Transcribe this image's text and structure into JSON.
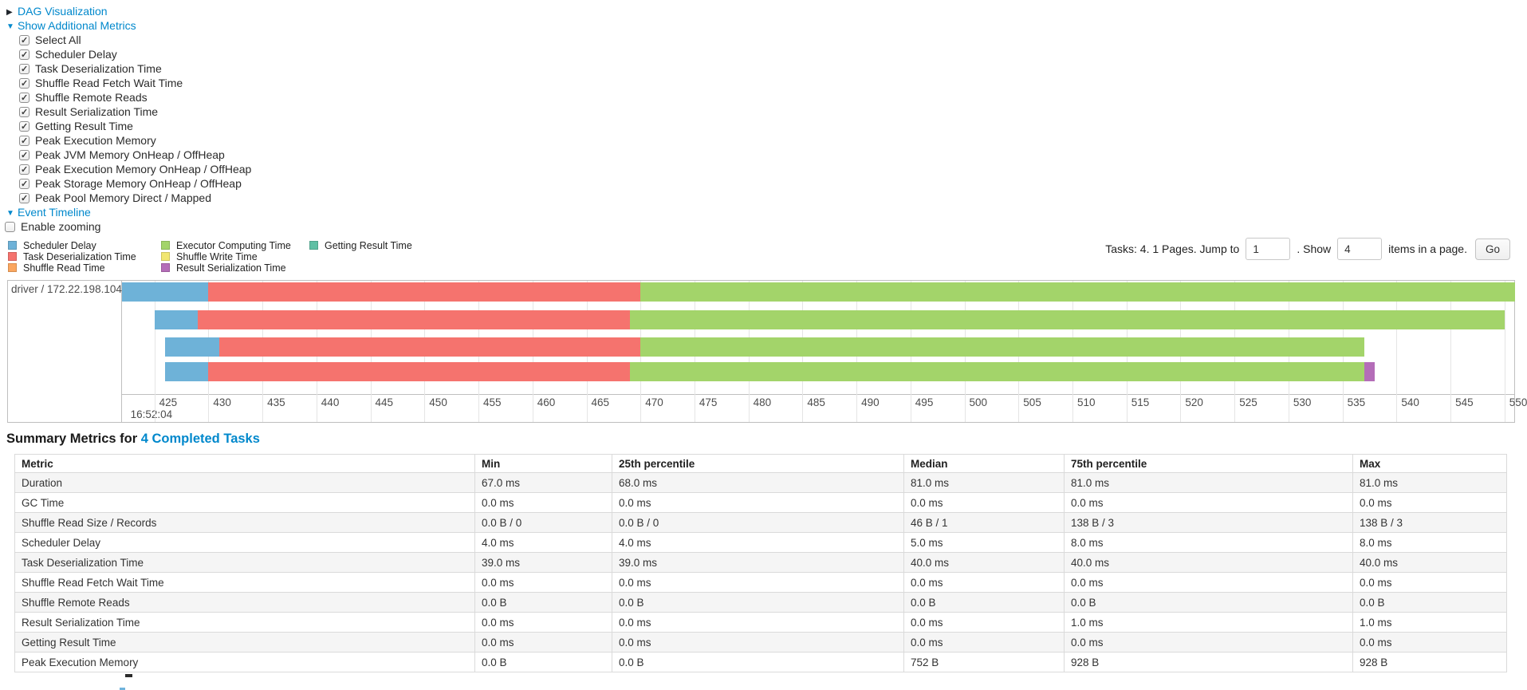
{
  "controls": {
    "dag": {
      "label": "DAG Visualization",
      "state": "collapsed"
    },
    "metrics_toggle": {
      "label": "Show Additional Metrics",
      "state": "expanded"
    },
    "metric_checkboxes": [
      {
        "label": "Select All",
        "checked": true
      },
      {
        "label": "Scheduler Delay",
        "checked": true
      },
      {
        "label": "Task Deserialization Time",
        "checked": true
      },
      {
        "label": "Shuffle Read Fetch Wait Time",
        "checked": true
      },
      {
        "label": "Shuffle Remote Reads",
        "checked": true
      },
      {
        "label": "Result Serialization Time",
        "checked": true
      },
      {
        "label": "Getting Result Time",
        "checked": true
      },
      {
        "label": "Peak Execution Memory",
        "checked": true
      },
      {
        "label": "Peak JVM Memory OnHeap / OffHeap",
        "checked": true
      },
      {
        "label": "Peak Execution Memory OnHeap / OffHeap",
        "checked": true
      },
      {
        "label": "Peak Storage Memory OnHeap / OffHeap",
        "checked": true
      },
      {
        "label": "Peak Pool Memory Direct / Mapped",
        "checked": true
      }
    ],
    "event_timeline": {
      "label": "Event Timeline",
      "state": "expanded"
    },
    "enable_zooming": {
      "label": "Enable zooming",
      "checked": false
    }
  },
  "legend": {
    "columns": [
      [
        {
          "key": "scheduler_delay",
          "label": "Scheduler Delay"
        },
        {
          "key": "task_deserialization",
          "label": "Task Deserialization Time"
        },
        {
          "key": "shuffle_read",
          "label": "Shuffle Read Time"
        }
      ],
      [
        {
          "key": "executor_computing",
          "label": "Executor Computing Time"
        },
        {
          "key": "shuffle_write",
          "label": "Shuffle Write Time"
        },
        {
          "key": "result_serialization",
          "label": "Result Serialization Time"
        }
      ],
      [
        {
          "key": "getting_result",
          "label": "Getting Result Time"
        }
      ]
    ]
  },
  "pagination": {
    "summary_label": "Tasks: 4. 1 Pages. Jump to",
    "jump_value": "1",
    "show_label": ". Show",
    "show_value": "4",
    "items_label": "items in a page.",
    "go_label": "Go"
  },
  "chart_data": {
    "type": "timeline",
    "group_label": "driver / 172.22.198.104",
    "x_axis": {
      "second_label": "16:52:04",
      "unit": "milliseconds within second",
      "tick_min": 425,
      "tick_max": 550,
      "tick_step": 5,
      "view_min": 422,
      "view_max": 550.9
    },
    "colors": {
      "scheduler_delay": "#6EB2D8",
      "task_deserialization": "#F5736E",
      "shuffle_read": "#FBA65F",
      "executor_computing": "#A3D46A",
      "shuffle_write": "#F1E670",
      "result_serialization": "#B46DB8",
      "getting_result": "#5FBFA4"
    },
    "tasks": [
      {
        "row": 0,
        "segments": [
          {
            "type": "scheduler_delay",
            "start": 422,
            "end": 430
          },
          {
            "type": "task_deserialization",
            "start": 430,
            "end": 470
          },
          {
            "type": "executor_computing",
            "start": 470,
            "end": 551
          }
        ]
      },
      {
        "row": 1,
        "segments": [
          {
            "type": "scheduler_delay",
            "start": 425,
            "end": 429
          },
          {
            "type": "task_deserialization",
            "start": 429,
            "end": 469
          },
          {
            "type": "executor_computing",
            "start": 469,
            "end": 550
          }
        ]
      },
      {
        "row": 2,
        "segments": [
          {
            "type": "scheduler_delay",
            "start": 426,
            "end": 431
          },
          {
            "type": "task_deserialization",
            "start": 431,
            "end": 470
          },
          {
            "type": "executor_computing",
            "start": 470,
            "end": 537
          }
        ]
      },
      {
        "row": 3,
        "segments": [
          {
            "type": "scheduler_delay",
            "start": 426,
            "end": 430
          },
          {
            "type": "task_deserialization",
            "start": 430,
            "end": 469
          },
          {
            "type": "executor_computing",
            "start": 469,
            "end": 537
          },
          {
            "type": "result_serialization",
            "start": 537,
            "end": 538
          }
        ]
      }
    ]
  },
  "summary": {
    "title_prefix": "Summary Metrics for ",
    "title_link": "4 Completed Tasks",
    "table": {
      "headers": [
        "Metric",
        "Min",
        "25th percentile",
        "Median",
        "75th percentile",
        "Max"
      ],
      "rows": [
        {
          "metric": "Duration",
          "values": [
            "67.0 ms",
            "68.0 ms",
            "81.0 ms",
            "81.0 ms",
            "81.0 ms"
          ]
        },
        {
          "metric": "GC Time",
          "values": [
            "0.0 ms",
            "0.0 ms",
            "0.0 ms",
            "0.0 ms",
            "0.0 ms"
          ]
        },
        {
          "metric": "Shuffle Read Size / Records",
          "values": [
            "0.0 B / 0",
            "0.0 B / 0",
            "46 B / 1",
            "138 B / 3",
            "138 B / 3"
          ]
        },
        {
          "metric": "Scheduler Delay",
          "values": [
            "4.0 ms",
            "4.0 ms",
            "5.0 ms",
            "8.0 ms",
            "8.0 ms"
          ]
        },
        {
          "metric": "Task Deserialization Time",
          "values": [
            "39.0 ms",
            "39.0 ms",
            "40.0 ms",
            "40.0 ms",
            "40.0 ms"
          ]
        },
        {
          "metric": "Shuffle Read Fetch Wait Time",
          "values": [
            "0.0 ms",
            "0.0 ms",
            "0.0 ms",
            "0.0 ms",
            "0.0 ms"
          ]
        },
        {
          "metric": "Shuffle Remote Reads",
          "values": [
            "0.0 B",
            "0.0 B",
            "0.0 B",
            "0.0 B",
            "0.0 B"
          ]
        },
        {
          "metric": "Result Serialization Time",
          "values": [
            "0.0 ms",
            "0.0 ms",
            "0.0 ms",
            "1.0 ms",
            "1.0 ms"
          ]
        },
        {
          "metric": "Getting Result Time",
          "values": [
            "0.0 ms",
            "0.0 ms",
            "0.0 ms",
            "0.0 ms",
            "0.0 ms"
          ]
        },
        {
          "metric": "Peak Execution Memory",
          "values": [
            "0.0 B",
            "0.0 B",
            "752 B",
            "928 B",
            "928 B"
          ]
        }
      ]
    }
  }
}
